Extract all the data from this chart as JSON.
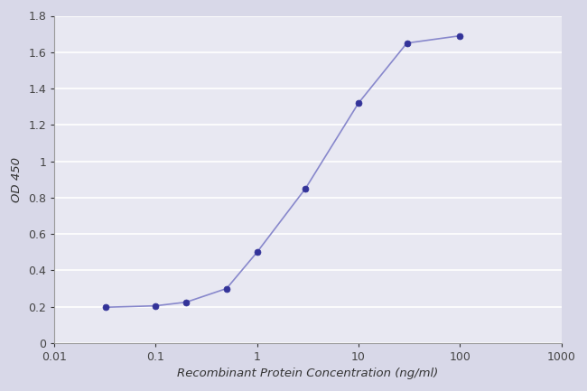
{
  "x": [
    0.032,
    0.1,
    0.2,
    0.5,
    1.0,
    3.0,
    10.0,
    30.0,
    100.0
  ],
  "y": [
    0.197,
    0.205,
    0.225,
    0.3,
    0.5,
    0.85,
    1.32,
    1.65,
    1.69
  ],
  "line_color": "#8888cc",
  "marker_color": "#333399",
  "xlabel": "Recombinant Protein Concentration (ng/ml)",
  "ylabel": "OD 450",
  "ylim": [
    0,
    1.8
  ],
  "yticks": [
    0,
    0.2,
    0.4,
    0.6,
    0.8,
    1.0,
    1.2,
    1.4,
    1.6,
    1.8
  ],
  "xlim": [
    0.01,
    1000
  ],
  "fig_bg_color": "#d8d8e8",
  "plot_bg_color": "#e8e8f2",
  "grid_color": "#c8c8d8",
  "marker_size": 5,
  "line_width": 1.2
}
